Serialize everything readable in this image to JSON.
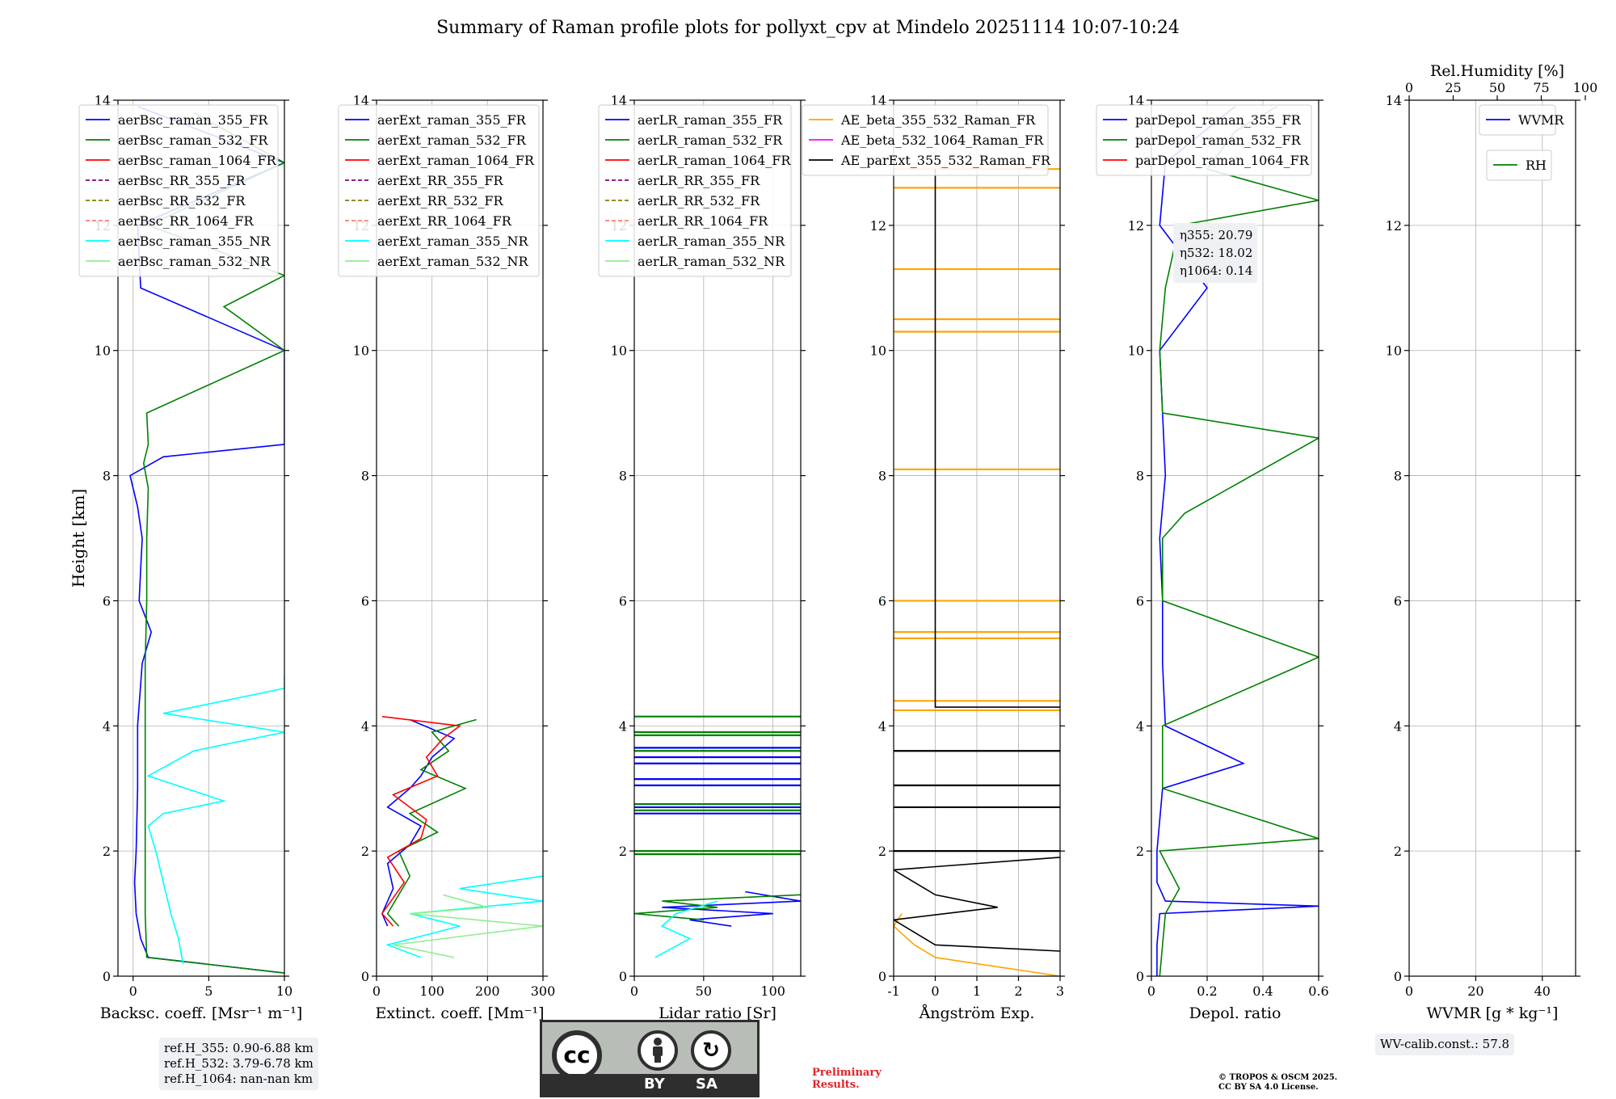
{
  "title": "Summary of Raman profile plots for pollyxt_cpv at Mindelo 20251114 10:07-10:24",
  "colors": {
    "blue": "#0000ff",
    "green": "#008000",
    "red": "#ff0000",
    "purple": "#800080",
    "olive": "#808000",
    "salmon": "#fa8072",
    "cyan": "#00ffff",
    "lightgreen": "#90ee90",
    "orange": "#ffa500",
    "magenta": "#ff00ff",
    "black": "#000000",
    "grid": "#b0b0b0",
    "cc_bg": "#b9bdb8",
    "preliminary": "#e0242a"
  },
  "y_axis": {
    "label": "Height [km]",
    "ylim": [
      0,
      14
    ],
    "ticks": [
      0,
      2,
      4,
      6,
      8,
      10,
      12,
      14
    ]
  },
  "chart_data": [
    {
      "type": "line",
      "id": "bsc",
      "xlabel": "Backsc. coeff. [Msr⁻¹ m⁻¹]",
      "xlim": [
        -1,
        10
      ],
      "xticks": [
        0,
        5,
        10
      ],
      "legend": [
        {
          "label": "aerBsc_raman_355_FR",
          "color": "blue",
          "style": "solid"
        },
        {
          "label": "aerBsc_raman_532_FR",
          "color": "green",
          "style": "solid"
        },
        {
          "label": "aerBsc_raman_1064_FR",
          "color": "red",
          "style": "solid"
        },
        {
          "label": "aerBsc_RR_355_FR",
          "color": "purple",
          "style": "dashed"
        },
        {
          "label": "aerBsc_RR_532_FR",
          "color": "olive",
          "style": "dashed"
        },
        {
          "label": "aerBsc_RR_1064_FR",
          "color": "salmon",
          "style": "dashed"
        },
        {
          "label": "aerBsc_raman_355_NR",
          "color": "cyan",
          "style": "solid"
        },
        {
          "label": "aerBsc_raman_532_NR",
          "color": "lightgreen",
          "style": "solid"
        }
      ],
      "series": [
        {
          "name": "aerBsc_raman_355_FR",
          "color": "blue",
          "y": [
            0.05,
            0.3,
            0.6,
            1.0,
            1.5,
            2.0,
            3.0,
            4.0,
            5.0,
            5.5,
            6.0,
            7.0,
            7.5,
            8.0,
            8.3,
            8.5,
            9.0,
            10.0,
            11.0,
            12.0,
            13.0,
            13.9
          ],
          "x": [
            10,
            1.0,
            0.5,
            0.2,
            0.1,
            0.2,
            0.3,
            0.3,
            0.6,
            1.2,
            0.4,
            0.6,
            0.3,
            -0.2,
            2.0,
            10,
            10,
            10,
            0.5,
            0.3,
            10,
            0.3
          ]
        },
        {
          "name": "aerBsc_raman_532_FR",
          "color": "green",
          "y": [
            0.05,
            0.3,
            1.0,
            2.0,
            3.0,
            4.0,
            5.0,
            6.0,
            7.0,
            7.8,
            8.2,
            8.5,
            9.0,
            10.0,
            10.7,
            11.2,
            12.0,
            13.0,
            13.8
          ],
          "x": [
            10,
            0.9,
            0.8,
            0.8,
            0.8,
            0.8,
            0.8,
            0.9,
            0.9,
            1.0,
            0.7,
            1.0,
            0.9,
            10,
            6.0,
            10,
            1.0,
            10,
            4.0
          ]
        },
        {
          "name": "aerBsc_raman_355_NR",
          "color": "cyan",
          "y": [
            0.2,
            0.6,
            1.0,
            1.5,
            2.0,
            2.4,
            2.6,
            2.8,
            3.2,
            3.6,
            3.9,
            4.2,
            4.6,
            4.8
          ],
          "x": [
            3.3,
            3.0,
            2.5,
            2.0,
            1.5,
            1.0,
            2.0,
            6.0,
            1.0,
            4.0,
            10,
            2.0,
            10,
            10
          ]
        }
      ],
      "box_lines": [
        "ref.H_355: 0.90-6.88 km",
        "ref.H_532: 3.79-6.78 km",
        "ref.H_1064: nan-nan km"
      ]
    },
    {
      "type": "line",
      "id": "ext",
      "xlabel": "Extinct. coeff. [Mm⁻¹]",
      "xlim": [
        0,
        300
      ],
      "xticks": [
        0,
        100,
        200,
        300
      ],
      "legend": [
        {
          "label": "aerExt_raman_355_FR",
          "color": "blue",
          "style": "solid"
        },
        {
          "label": "aerExt_raman_532_FR",
          "color": "green",
          "style": "solid"
        },
        {
          "label": "aerExt_raman_1064_FR",
          "color": "red",
          "style": "solid"
        },
        {
          "label": "aerExt_RR_355_FR",
          "color": "purple",
          "style": "dashed"
        },
        {
          "label": "aerExt_RR_532_FR",
          "color": "olive",
          "style": "dashed"
        },
        {
          "label": "aerExt_RR_1064_FR",
          "color": "salmon",
          "style": "dashed"
        },
        {
          "label": "aerExt_raman_355_NR",
          "color": "cyan",
          "style": "solid"
        },
        {
          "label": "aerExt_raman_532_NR",
          "color": "lightgreen",
          "style": "solid"
        }
      ],
      "series": [
        {
          "name": "aerExt_raman_355_FR",
          "color": "blue",
          "y": [
            0.8,
            1.0,
            1.4,
            1.8,
            2.1,
            2.4,
            2.7,
            3.0,
            3.2,
            3.5,
            3.8,
            4.1
          ],
          "x": [
            20,
            10,
            30,
            20,
            60,
            80,
            20,
            60,
            80,
            100,
            140,
            60
          ]
        },
        {
          "name": "aerExt_raman_532_FR",
          "color": "green",
          "y": [
            0.8,
            1.0,
            1.6,
            2.0,
            2.3,
            2.6,
            3.0,
            3.3,
            3.6,
            3.9,
            4.1
          ],
          "x": [
            40,
            20,
            60,
            40,
            110,
            60,
            160,
            80,
            130,
            100,
            180
          ]
        },
        {
          "name": "aerExt_raman_1064_FR",
          "color": "red",
          "y": [
            0.8,
            1.0,
            1.5,
            1.9,
            2.2,
            2.5,
            2.9,
            3.2,
            3.5,
            3.8,
            4.0,
            4.15
          ],
          "x": [
            30,
            10,
            50,
            20,
            80,
            90,
            30,
            110,
            90,
            120,
            150,
            10
          ]
        },
        {
          "name": "aerExt_raman_355_NR",
          "color": "cyan",
          "y": [
            0.3,
            0.5,
            0.8,
            1.0,
            1.2,
            1.4,
            1.6
          ],
          "x": [
            80,
            20,
            150,
            60,
            300,
            150,
            300
          ]
        },
        {
          "name": "aerExt_raman_532_NR",
          "color": "lightgreen",
          "y": [
            0.3,
            0.5,
            0.8,
            1.0,
            1.1,
            1.3
          ],
          "x": [
            140,
            30,
            300,
            60,
            200,
            120
          ]
        }
      ]
    },
    {
      "type": "line",
      "id": "lr",
      "xlabel": "Lidar ratio [Sr]",
      "xlim": [
        0,
        120
      ],
      "xticks": [
        0,
        50,
        100
      ],
      "legend": [
        {
          "label": "aerLR_raman_355_FR",
          "color": "blue",
          "style": "solid"
        },
        {
          "label": "aerLR_raman_532_FR",
          "color": "green",
          "style": "solid"
        },
        {
          "label": "aerLR_raman_1064_FR",
          "color": "red",
          "style": "solid"
        },
        {
          "label": "aerLR_RR_355_FR",
          "color": "purple",
          "style": "dashed"
        },
        {
          "label": "aerLR_RR_532_FR",
          "color": "olive",
          "style": "dashed"
        },
        {
          "label": "aerLR_RR_1064_FR",
          "color": "salmon",
          "style": "dashed"
        },
        {
          "label": "aerLR_raman_355_NR",
          "color": "cyan",
          "style": "solid"
        },
        {
          "label": "aerLR_raman_532_NR",
          "color": "lightgreen",
          "style": "solid"
        }
      ],
      "series": [
        {
          "name": "aerLR_raman_355_FR",
          "color": "blue",
          "y": [
            0.8,
            0.9,
            1.0,
            1.1,
            1.2,
            1.35
          ],
          "x": [
            70,
            40,
            100,
            20,
            120,
            80
          ]
        },
        {
          "name": "aerLR_raman_532_FR",
          "color": "green",
          "y": [
            0.9,
            1.0,
            1.1,
            1.2,
            1.3
          ],
          "x": [
            50,
            0,
            60,
            20,
            120
          ]
        },
        {
          "name": "aerLR_raman_355_NR",
          "color": "cyan",
          "y": [
            0.3,
            0.6,
            0.8,
            1.0,
            1.2
          ],
          "x": [
            15,
            40,
            20,
            30,
            60
          ]
        }
      ],
      "hlines": [
        {
          "color": "blue",
          "y": [
            2.6,
            2.7,
            3.05,
            3.15,
            3.4,
            3.5,
            3.65
          ]
        },
        {
          "color": "green",
          "y": [
            1.95,
            2.0,
            2.65,
            2.75,
            3.6,
            3.85,
            3.9,
            4.15
          ]
        }
      ]
    },
    {
      "type": "line",
      "id": "ae",
      "xlabel": "Ångström Exp.",
      "xlim": [
        -1,
        3
      ],
      "xticks": [
        -1,
        0,
        1,
        2,
        3
      ],
      "legend": [
        {
          "label": "AE_beta_355_532_Raman_FR",
          "color": "orange",
          "style": "solid"
        },
        {
          "label": "AE_beta_532_1064_Raman_FR",
          "color": "magenta",
          "style": "solid"
        },
        {
          "label": "AE_parExt_355_532_Raman_FR",
          "color": "black",
          "style": "solid"
        }
      ],
      "series": [
        {
          "name": "AE_beta_355_532_Raman_FR",
          "color": "orange",
          "y": [
            0.0,
            0.15,
            0.3,
            0.5,
            0.8,
            1.0
          ],
          "x": [
            3,
            1.5,
            0,
            -0.5,
            -1,
            -0.8
          ]
        },
        {
          "name": "AE_parExt_355_532_Raman_FR",
          "color": "black",
          "y": [
            0.4,
            0.5,
            0.9,
            1.1,
            1.3,
            1.5,
            1.7,
            1.9
          ],
          "x": [
            3,
            0,
            -1,
            1.5,
            0,
            -0.5,
            -1,
            3
          ]
        },
        {
          "name": "AE_parExt_355_532_Raman_FR (upper)",
          "color": "black",
          "y": [
            4.3,
            4.3,
            12.9
          ],
          "x": [
            3,
            0,
            0
          ]
        }
      ],
      "hlines": [
        {
          "color": "orange",
          "y": [
            4.25,
            4.4,
            5.4,
            5.5,
            6.0,
            8.1,
            10.3,
            10.5,
            11.3,
            12.6,
            12.9
          ]
        },
        {
          "color": "black",
          "y": [
            2.0,
            2.7,
            3.05,
            3.6
          ]
        }
      ]
    },
    {
      "type": "line",
      "id": "depol",
      "xlabel": "Depol. ratio",
      "xlim": [
        0,
        0.6
      ],
      "xticks": [
        0.0,
        0.2,
        0.4,
        0.6
      ],
      "legend": [
        {
          "label": "parDepol_raman_355_FR",
          "color": "blue",
          "style": "solid"
        },
        {
          "label": "parDepol_raman_532_FR",
          "color": "green",
          "style": "solid"
        },
        {
          "label": "parDepol_raman_1064_FR",
          "color": "red",
          "style": "solid"
        }
      ],
      "series": [
        {
          "name": "parDepol_raman_355_FR",
          "color": "blue",
          "y": [
            0.0,
            0.5,
            1.0,
            1.12,
            1.2,
            1.5,
            2.0,
            3.0,
            3.4,
            4.0,
            5.0,
            6.0,
            7.0,
            8.0,
            9.0,
            10.0,
            11.0,
            12.0,
            13.0,
            13.9
          ],
          "x": [
            0.02,
            0.02,
            0.03,
            0.6,
            0.05,
            0.02,
            0.02,
            0.04,
            0.33,
            0.05,
            0.04,
            0.04,
            0.03,
            0.05,
            0.04,
            0.03,
            0.2,
            0.03,
            0.05,
            0.3
          ]
        },
        {
          "name": "parDepol_raman_532_FR",
          "color": "green",
          "y": [
            0.0,
            0.5,
            1.0,
            1.4,
            2.0,
            2.2,
            3.0,
            4.0,
            4.9,
            5.1,
            6.0,
            7.0,
            7.4,
            8.6,
            9.0,
            10.0,
            11.0,
            12.0,
            12.4,
            12.9,
            13.5,
            13.9
          ],
          "x": [
            0.03,
            0.04,
            0.05,
            0.1,
            0.03,
            0.6,
            0.04,
            0.04,
            0.5,
            0.6,
            0.04,
            0.04,
            0.12,
            0.6,
            0.04,
            0.03,
            0.05,
            0.1,
            0.6,
            0.2,
            0.3,
            0.45
          ]
        }
      ],
      "box_lines": [
        "η355: 20.79",
        "η532: 18.02",
        "η1064: 0.14"
      ]
    },
    {
      "type": "line",
      "id": "wv",
      "xlabel": "WVMR [g * kg⁻¹]",
      "xlim": [
        0,
        50
      ],
      "xticks": [
        0,
        20,
        40
      ],
      "top_xlabel": "Rel.Humidity [%]",
      "top_xticks": [
        0,
        25,
        50,
        75,
        100
      ],
      "legend": [
        {
          "label": "WVMR",
          "color": "blue",
          "style": "solid"
        }
      ],
      "legend2": [
        {
          "label": "RH",
          "color": "green",
          "style": "solid"
        }
      ],
      "series": [],
      "box_lines": [
        "WV-calib.const.: 57.8"
      ]
    }
  ],
  "license": {
    "cc": "cc",
    "by": "BY",
    "sa": "SA"
  },
  "preliminary": {
    "line1": "Preliminary",
    "line2": "Results."
  },
  "copyright": {
    "line1": "© TROPOS & OSCM 2025.",
    "line2": "CC BY SA 4.0 License."
  }
}
